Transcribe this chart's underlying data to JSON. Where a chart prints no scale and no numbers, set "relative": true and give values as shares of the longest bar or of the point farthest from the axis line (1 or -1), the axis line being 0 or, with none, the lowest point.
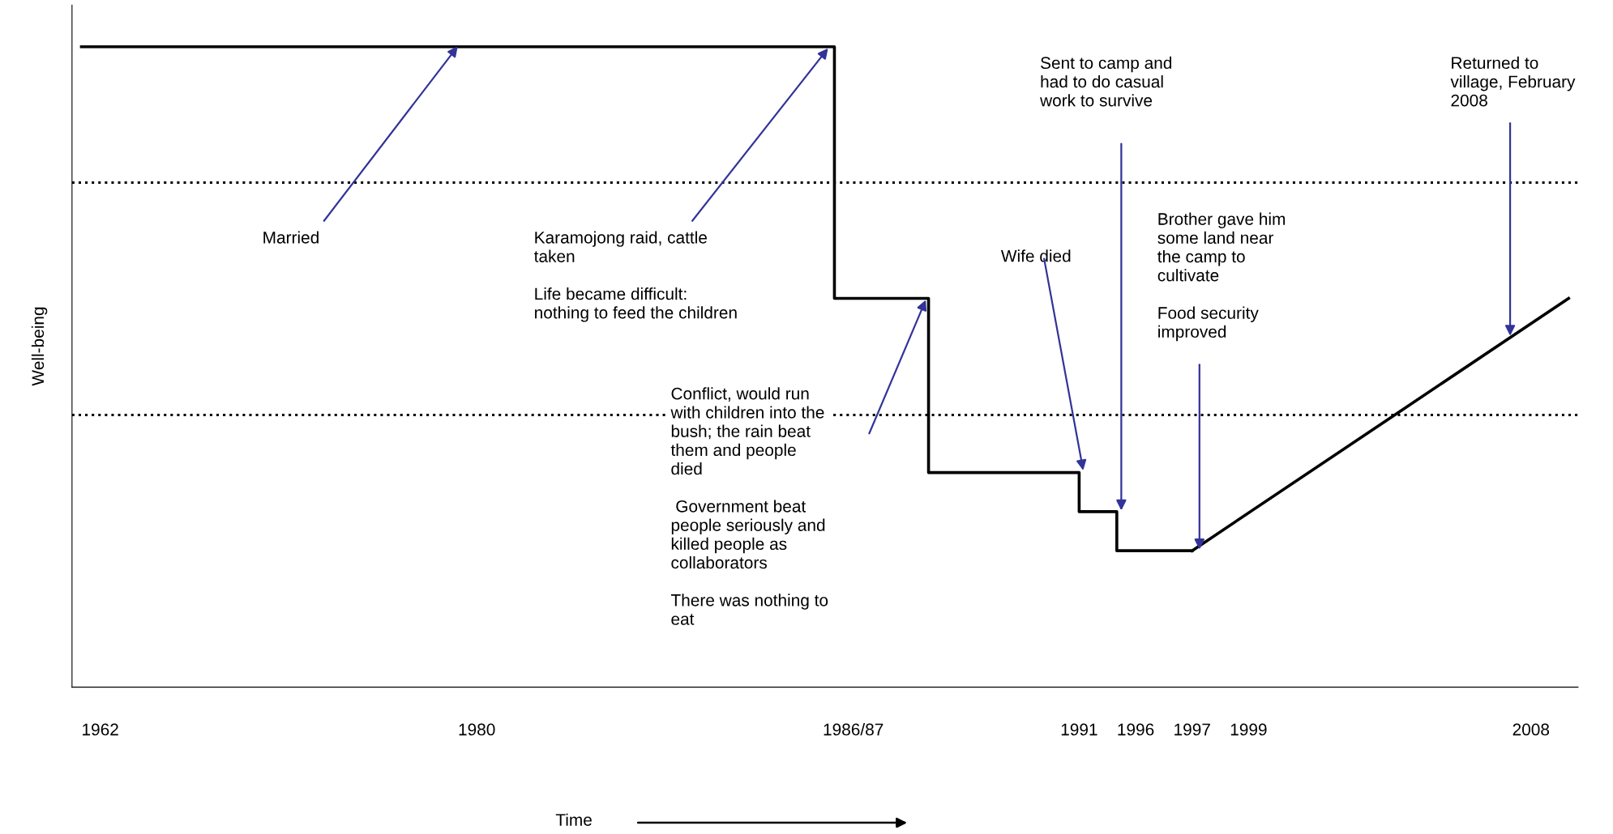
{
  "chart_data": {
    "type": "step",
    "relative": true,
    "ylabel": "Well-being",
    "categories": [
      null,
      "1962",
      null,
      null,
      null,
      null,
      null,
      null,
      null,
      null,
      null,
      null,
      null,
      null,
      null,
      null,
      null,
      null,
      null,
      null,
      null,
      "1980",
      null,
      null,
      null,
      null,
      null,
      null,
      null,
      null,
      null,
      null,
      null,
      null,
      null,
      null,
      null,
      null,
      null,
      null,
      null,
      "1986/87",
      null,
      null,
      null,
      null,
      null,
      null,
      null,
      null,
      null,
      null,
      null,
      "1991",
      null,
      null,
      "1996",
      null,
      null,
      "1997",
      null,
      null,
      "1999",
      null,
      null,
      null,
      null,
      null,
      null,
      null,
      null,
      null,
      null,
      null,
      null,
      null,
      null,
      "2008",
      null,
      null
    ],
    "series": [
      {
        "color": "#000000",
        "values": [
          1,
          1,
          1,
          1,
          1,
          1,
          1,
          1,
          1,
          1,
          1,
          1,
          1,
          1,
          1,
          1,
          1,
          1,
          1,
          1,
          1,
          1,
          1,
          1,
          1,
          1,
          1,
          1,
          1,
          1,
          1,
          1,
          1,
          1,
          1,
          1,
          1,
          1,
          1,
          1,
          0.607,
          0.607,
          0.607,
          0.607,
          0.607,
          0.335,
          0.335,
          0.335,
          0.335,
          0.335,
          0.335,
          0.335,
          0.335,
          0.274,
          0.274,
          0.213,
          0.213,
          0.213,
          0.213,
          0.213,
          null,
          null,
          null,
          null,
          null,
          null,
          null,
          null,
          null,
          null,
          null,
          null,
          null,
          null,
          null,
          null,
          null,
          null,
          null,
          null
        ]
      },
      {
        "type": "line",
        "color": "#000000",
        "values": [
          null,
          null,
          null,
          null,
          null,
          null,
          null,
          null,
          null,
          null,
          null,
          null,
          null,
          null,
          null,
          null,
          null,
          null,
          null,
          null,
          null,
          null,
          null,
          null,
          null,
          null,
          null,
          null,
          null,
          null,
          null,
          null,
          null,
          null,
          null,
          null,
          null,
          null,
          null,
          null,
          null,
          null,
          null,
          null,
          null,
          null,
          null,
          null,
          null,
          null,
          null,
          null,
          null,
          null,
          null,
          null,
          null,
          null,
          null,
          0.213,
          null,
          null,
          null,
          null,
          null,
          null,
          null,
          null,
          null,
          null,
          null,
          null,
          null,
          null,
          null,
          null,
          null,
          null,
          null,
          0.607
        ]
      }
    ],
    "ref_lines": [
      {
        "axis": "y",
        "value": 0.788,
        "label": null,
        "color": "#000000",
        "line_style": "dotted"
      },
      {
        "axis": "y",
        "value": 0.425,
        "label": null,
        "color": "#000000",
        "line_style": "dotted"
      }
    ],
    "annotations": [
      "Married",
      "Karamojong raid, cattle\ntaken\n\nLife became difficult:\nnothing to feed the children",
      "Conflict, would run\nwith children into the\nbush; the rain beat\nthem and people\ndied\n\n Government beat\npeople seriously and\nkilled people as\ncollaborators\n\nThere was nothing to\neat",
      "Wife died",
      "Sent to camp and\nhad to do casual\nwork to survive",
      "Brother gave him\nsome land near\nthe camp to\ncultivate\n\nFood security\nimproved",
      "Returned to\nvillage, February\n2008",
      "Time"
    ],
    "grid": false,
    "marker": "none",
    "line_style": "solid"
  }
}
